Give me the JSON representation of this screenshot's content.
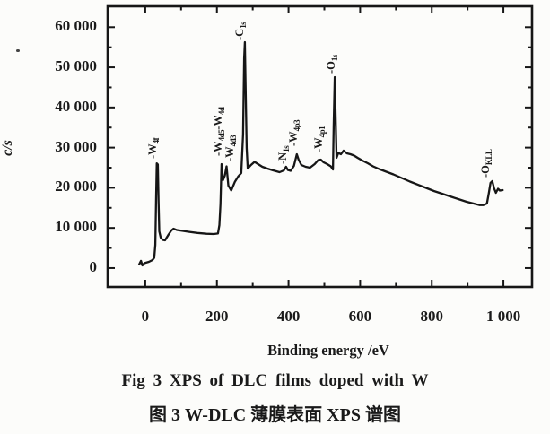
{
  "figure": {
    "caption_en": "Fig 3   XPS of DLC films doped with W",
    "caption_zh": "图 3   W-DLC 薄膜表面 XPS 谱图"
  },
  "chart_data": {
    "type": "line",
    "title": "",
    "xlabel": "Binding energy /eV",
    "ylabel": "c/s",
    "xlim": [
      -105,
      1080
    ],
    "ylim": [
      -4700,
      65200
    ],
    "grid": false,
    "legend": "none",
    "x_ticks": {
      "major": [
        0,
        200,
        400,
        600,
        800,
        1000
      ],
      "labels": [
        "0",
        "200",
        "400",
        "600",
        "800",
        "1 000"
      ],
      "minor": [
        100,
        300,
        500,
        700,
        900
      ]
    },
    "y_ticks": {
      "major": [
        0,
        10000,
        20000,
        30000,
        40000,
        50000,
        60000
      ],
      "labels": [
        "0",
        "10 000",
        "20 000",
        "30 000",
        "40 000",
        "50 000",
        "60 000"
      ],
      "minor": [
        5000,
        15000,
        25000,
        35000,
        45000,
        55000
      ]
    },
    "annotations": [
      {
        "text": "-W_{4f}",
        "be": 24,
        "counts": 27200
      },
      {
        "text": "-W_{4d5}-W_{4d}",
        "be": 206,
        "counts": 27800
      },
      {
        "text": "-W_{4d3}",
        "be": 238,
        "counts": 26600
      },
      {
        "text": "-C_{1s}",
        "be": 266,
        "counts": 56700
      },
      {
        "text": "-N_{1s}",
        "be": 386,
        "counts": 25900
      },
      {
        "text": "-W_{4p3}",
        "be": 416,
        "counts": 30400
      },
      {
        "text": "-W_{4p1}",
        "be": 486,
        "counts": 28900
      },
      {
        "text": "-O_{1s}",
        "be": 521,
        "counts": 48500
      },
      {
        "text": "-O_{KLL}",
        "be": 952,
        "counts": 22600
      }
    ],
    "series": [
      {
        "name": "W-DLC XPS survey spectrum",
        "points": [
          [
            -17,
            900
          ],
          [
            -12,
            1790
          ],
          [
            -8,
            670
          ],
          [
            -2,
            1230
          ],
          [
            10,
            1560
          ],
          [
            20,
            2010
          ],
          [
            25,
            2570
          ],
          [
            28,
            5800
          ],
          [
            30,
            16500
          ],
          [
            32,
            26100
          ],
          [
            35,
            25800
          ],
          [
            37,
            16500
          ],
          [
            39,
            9150
          ],
          [
            43,
            7590
          ],
          [
            49,
            7030
          ],
          [
            55,
            6920
          ],
          [
            65,
            8370
          ],
          [
            73,
            9380
          ],
          [
            79,
            9820
          ],
          [
            88,
            9490
          ],
          [
            103,
            9270
          ],
          [
            123,
            9020
          ],
          [
            146,
            8750
          ],
          [
            171,
            8550
          ],
          [
            191,
            8480
          ],
          [
            203,
            8600
          ],
          [
            207,
            10700
          ],
          [
            210,
            15850
          ],
          [
            213,
            25900
          ],
          [
            217,
            21900
          ],
          [
            222,
            23000
          ],
          [
            227,
            25340
          ],
          [
            232,
            20540
          ],
          [
            240,
            19320
          ],
          [
            250,
            21440
          ],
          [
            260,
            22890
          ],
          [
            268,
            23670
          ],
          [
            273,
            33270
          ],
          [
            276,
            52250
          ],
          [
            278,
            56270
          ],
          [
            280,
            45550
          ],
          [
            283,
            29920
          ],
          [
            286,
            24780
          ],
          [
            295,
            25680
          ],
          [
            305,
            26460
          ],
          [
            315,
            25900
          ],
          [
            327,
            25230
          ],
          [
            341,
            24780
          ],
          [
            357,
            24340
          ],
          [
            375,
            23890
          ],
          [
            387,
            24340
          ],
          [
            393,
            25230
          ],
          [
            398,
            24450
          ],
          [
            406,
            24230
          ],
          [
            415,
            25450
          ],
          [
            423,
            28360
          ],
          [
            428,
            27020
          ],
          [
            436,
            25680
          ],
          [
            448,
            25230
          ],
          [
            460,
            25010
          ],
          [
            473,
            25900
          ],
          [
            483,
            26910
          ],
          [
            490,
            27020
          ],
          [
            498,
            26350
          ],
          [
            508,
            25900
          ],
          [
            518,
            25340
          ],
          [
            524,
            24560
          ],
          [
            526,
            35500
          ],
          [
            529,
            47560
          ],
          [
            532,
            35500
          ],
          [
            534,
            27460
          ],
          [
            539,
            28690
          ],
          [
            546,
            28360
          ],
          [
            554,
            29250
          ],
          [
            563,
            28580
          ],
          [
            573,
            28360
          ],
          [
            583,
            28020
          ],
          [
            593,
            27460
          ],
          [
            606,
            26790
          ],
          [
            621,
            26120
          ],
          [
            636,
            25340
          ],
          [
            653,
            24670
          ],
          [
            673,
            24000
          ],
          [
            693,
            23330
          ],
          [
            716,
            22440
          ],
          [
            739,
            21550
          ],
          [
            761,
            20770
          ],
          [
            784,
            19980
          ],
          [
            806,
            19200
          ],
          [
            829,
            18530
          ],
          [
            851,
            17860
          ],
          [
            874,
            17190
          ],
          [
            897,
            16520
          ],
          [
            917,
            16080
          ],
          [
            933,
            15680
          ],
          [
            944,
            15680
          ],
          [
            954,
            16080
          ],
          [
            959,
            18530
          ],
          [
            964,
            21210
          ],
          [
            969,
            21660
          ],
          [
            974,
            19870
          ],
          [
            979,
            18750
          ],
          [
            985,
            19760
          ],
          [
            990,
            19310
          ],
          [
            998,
            19430
          ]
        ]
      }
    ]
  }
}
